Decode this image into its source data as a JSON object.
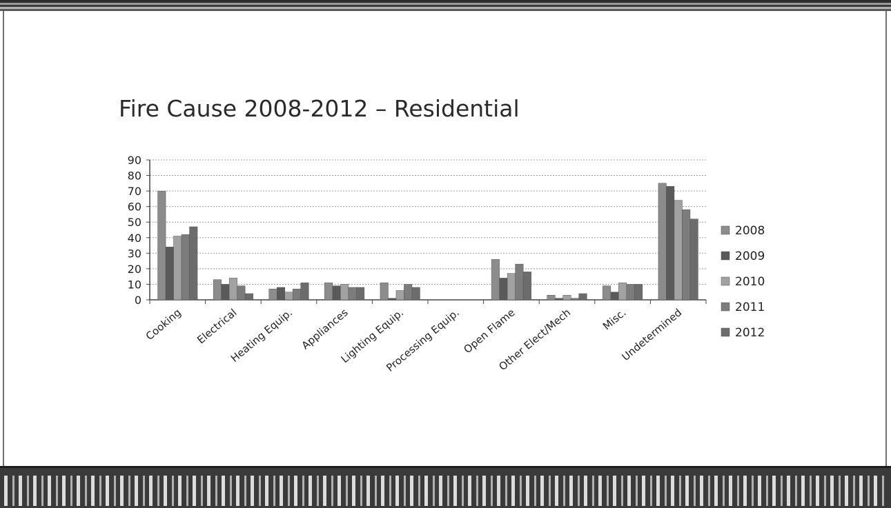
{
  "slide": {
    "title": "Fire Cause 2008-2012 – Residential"
  },
  "chart_data": {
    "type": "bar",
    "title": "",
    "xlabel": "",
    "ylabel": "",
    "ylim": [
      0,
      90
    ],
    "yticks": [
      0,
      10,
      20,
      30,
      40,
      50,
      60,
      70,
      80,
      90
    ],
    "grid": true,
    "legend_position": "right",
    "categories": [
      "Cooking",
      "Electrical",
      "Heating Equip.",
      "Appliances",
      "Lighting Equip.",
      "Processing Equip.",
      "Open Flame",
      "Other Elect/Mech",
      "Misc.",
      "Undetermined"
    ],
    "series": [
      {
        "name": "2008",
        "color": "#8c8c8c",
        "values": [
          70,
          13,
          7,
          11,
          11,
          0,
          26,
          3,
          9,
          75
        ]
      },
      {
        "name": "2009",
        "color": "#5a5a5a",
        "values": [
          34,
          10,
          8,
          9,
          1,
          0,
          14,
          1,
          5,
          73
        ]
      },
      {
        "name": "2010",
        "color": "#a2a2a2",
        "values": [
          41,
          14,
          5,
          10,
          6,
          0,
          17,
          3,
          11,
          64
        ]
      },
      {
        "name": "2011",
        "color": "#7c7c7c",
        "values": [
          42,
          9,
          7,
          8,
          10,
          0,
          23,
          1,
          10,
          58
        ]
      },
      {
        "name": "2012",
        "color": "#6c6c6c",
        "values": [
          47,
          4,
          11,
          8,
          8,
          0,
          18,
          4,
          10,
          52
        ]
      }
    ]
  }
}
